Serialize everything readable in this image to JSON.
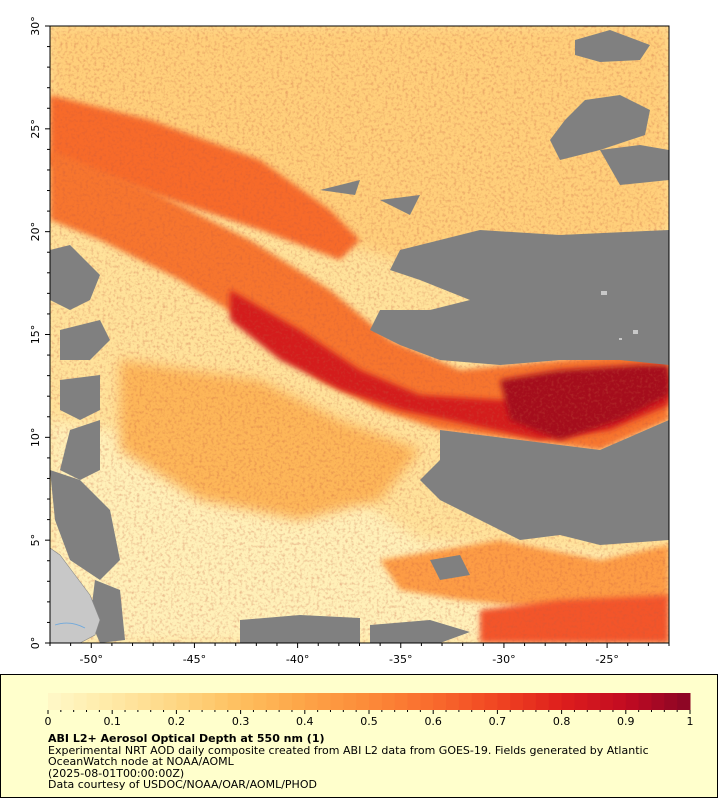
{
  "map": {
    "y_axis_labels": [
      "30°",
      "25°",
      "20°",
      "15°",
      "10°",
      "5°",
      "0°"
    ],
    "x_axis_labels": [
      "-50°",
      "-45°",
      "-40°",
      "-35°",
      "-30°",
      "-25°"
    ],
    "lon_range": [
      -52,
      -22
    ],
    "lat_range": [
      0,
      30
    ],
    "no_data_color": "#808080",
    "land_color": "#c8c8c8",
    "variable": "Aerosol Optical Depth at 550 nm"
  },
  "colorbar": {
    "tick_labels": [
      "0",
      "0.1",
      "0.2",
      "0.3",
      "0.4",
      "0.5",
      "0.6",
      "0.7",
      "0.8",
      "0.9",
      "1"
    ],
    "range": [
      0,
      1
    ],
    "colors": [
      "#fff8c8",
      "#ffe9a6",
      "#fed683",
      "#febf5e",
      "#fda447",
      "#fc8a39",
      "#f96b2d",
      "#f04522",
      "#de1e1c",
      "#c20b22",
      "#880525"
    ]
  },
  "caption": {
    "title": "ABI L2+ Aerosol Optical Depth at 550 nm (1)",
    "line1": "Experimental NRT AOD daily composite created from ABI L2 data from GOES-19. Fields generated by Atlantic",
    "line2": "OceanWatch node at NOAA/AOML",
    "line3": "(2025-08-01T00:00:00Z)",
    "line4": "Data courtesy of USDOC/NOAA/OAR/AOML/PHOD"
  }
}
